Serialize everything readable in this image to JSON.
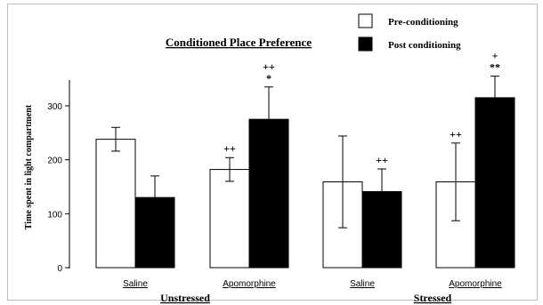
{
  "chart_data": {
    "type": "bar",
    "title": "Conditioned Place Preference",
    "ylabel": "Time spent in light compartment",
    "xlabel": "",
    "ylim": [
      0,
      350
    ],
    "yticks": [
      0,
      100,
      200,
      300
    ],
    "grid": false,
    "legend_position": "top-right",
    "categories": [
      "Saline",
      "Apomorphine",
      "Saline",
      "Apomorphine"
    ],
    "groups": [
      {
        "label": "Unstressed",
        "categories": [
          "Saline",
          "Apomorphine"
        ]
      },
      {
        "label": "Stressed",
        "categories": [
          "Saline",
          "Apomorphine"
        ]
      }
    ],
    "series": [
      {
        "name": "Pre-conditioning",
        "color": "#ffffff",
        "values": [
          238,
          182,
          159,
          159
        ],
        "errors": [
          22,
          22,
          85,
          72
        ]
      },
      {
        "name": "Post conditioning",
        "color": "#000000",
        "values": [
          130,
          275,
          141,
          315
        ],
        "errors": [
          40,
          60,
          42,
          40
        ]
      }
    ],
    "annotations": [
      {
        "category_index": 1,
        "series_index": 0,
        "text": "++"
      },
      {
        "category_index": 1,
        "series_index": 1,
        "text": "++\n*"
      },
      {
        "category_index": 2,
        "series_index": 1,
        "text": "++"
      },
      {
        "category_index": 3,
        "series_index": 0,
        "text": "++"
      },
      {
        "category_index": 3,
        "series_index": 1,
        "text": "+\n**"
      }
    ]
  }
}
